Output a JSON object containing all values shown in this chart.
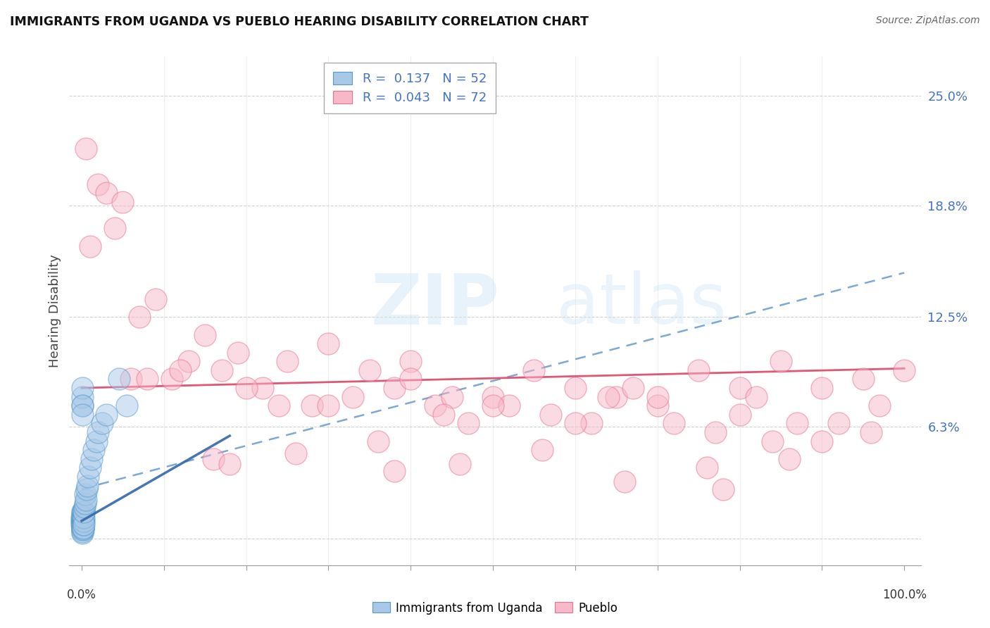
{
  "title": "IMMIGRANTS FROM UGANDA VS PUEBLO HEARING DISABILITY CORRELATION CHART",
  "source": "Source: ZipAtlas.com",
  "ylabel": "Hearing Disability",
  "ytick_vals": [
    0.0,
    0.063,
    0.125,
    0.188,
    0.25
  ],
  "ytick_labels": [
    "",
    "6.3%",
    "12.5%",
    "18.8%",
    "25.0%"
  ],
  "legend_blue_r": "0.137",
  "legend_blue_n": "52",
  "legend_pink_r": "0.043",
  "legend_pink_n": "72",
  "blue_fill": "#a8c8e8",
  "blue_edge": "#5599cc",
  "pink_fill": "#f8b8c8",
  "pink_edge": "#e87090",
  "blue_trend_dash_color": "#6699cc",
  "blue_trend_solid_color": "#3366aa",
  "pink_trend_color": "#dd4466",
  "tick_label_color": "#4472c4",
  "grid_color": "#cccccc",
  "background": "#ffffff",
  "blue_scatter_x": [
    0.02,
    0.03,
    0.04,
    0.05,
    0.05,
    0.06,
    0.07,
    0.07,
    0.08,
    0.08,
    0.09,
    0.1,
    0.1,
    0.11,
    0.12,
    0.12,
    0.13,
    0.14,
    0.15,
    0.15,
    0.16,
    0.17,
    0.18,
    0.19,
    0.2,
    0.2,
    0.22,
    0.24,
    0.26,
    0.28,
    0.3,
    0.35,
    0.4,
    0.45,
    0.5,
    0.6,
    0.7,
    0.8,
    1.0,
    1.2,
    1.5,
    1.8,
    2.0,
    2.5,
    3.0,
    0.08,
    0.09,
    0.1,
    0.11,
    0.13,
    4.5,
    5.5
  ],
  "blue_scatter_y": [
    0.01,
    0.008,
    0.012,
    0.005,
    0.015,
    0.008,
    0.01,
    0.003,
    0.012,
    0.006,
    0.005,
    0.01,
    0.015,
    0.008,
    0.012,
    0.004,
    0.008,
    0.006,
    0.01,
    0.005,
    0.012,
    0.015,
    0.01,
    0.008,
    0.006,
    0.012,
    0.015,
    0.01,
    0.012,
    0.008,
    0.015,
    0.018,
    0.02,
    0.025,
    0.022,
    0.028,
    0.03,
    0.035,
    0.04,
    0.045,
    0.05,
    0.055,
    0.06,
    0.065,
    0.07,
    0.075,
    0.08,
    0.085,
    0.075,
    0.07,
    0.09,
    0.075
  ],
  "pink_scatter_x": [
    0.5,
    1.0,
    2.0,
    3.0,
    4.0,
    5.0,
    7.0,
    9.0,
    11.0,
    13.0,
    15.0,
    17.0,
    19.0,
    22.0,
    25.0,
    28.0,
    30.0,
    33.0,
    35.0,
    38.0,
    40.0,
    43.0,
    45.0,
    47.0,
    50.0,
    52.0,
    55.0,
    57.0,
    60.0,
    62.0,
    65.0,
    67.0,
    70.0,
    72.0,
    75.0,
    77.0,
    80.0,
    82.0,
    85.0,
    87.0,
    90.0,
    92.0,
    95.0,
    97.0,
    100.0,
    6.0,
    12.0,
    20.0,
    30.0,
    40.0,
    50.0,
    60.0,
    70.0,
    80.0,
    90.0,
    8.0,
    24.0,
    44.0,
    64.0,
    84.0,
    16.0,
    36.0,
    56.0,
    76.0,
    96.0,
    26.0,
    46.0,
    66.0,
    86.0,
    18.0,
    38.0,
    78.0
  ],
  "pink_scatter_y": [
    0.22,
    0.165,
    0.2,
    0.195,
    0.175,
    0.19,
    0.125,
    0.135,
    0.09,
    0.1,
    0.115,
    0.095,
    0.105,
    0.085,
    0.1,
    0.075,
    0.11,
    0.08,
    0.095,
    0.085,
    0.1,
    0.075,
    0.08,
    0.065,
    0.08,
    0.075,
    0.095,
    0.07,
    0.085,
    0.065,
    0.08,
    0.085,
    0.075,
    0.065,
    0.095,
    0.06,
    0.085,
    0.08,
    0.1,
    0.065,
    0.085,
    0.065,
    0.09,
    0.075,
    0.095,
    0.09,
    0.095,
    0.085,
    0.075,
    0.09,
    0.075,
    0.065,
    0.08,
    0.07,
    0.055,
    0.09,
    0.075,
    0.07,
    0.08,
    0.055,
    0.045,
    0.055,
    0.05,
    0.04,
    0.06,
    0.048,
    0.042,
    0.032,
    0.045,
    0.042,
    0.038,
    0.028
  ],
  "blue_dash_trend_x": [
    0,
    100
  ],
  "blue_dash_trend_y": [
    0.028,
    0.15
  ],
  "blue_solid_trend_x": [
    0,
    18
  ],
  "blue_solid_trend_y": [
    0.01,
    0.058
  ],
  "pink_trend_x": [
    0,
    100
  ],
  "pink_trend_y": [
    0.085,
    0.096
  ],
  "xlim": [
    -1.5,
    102
  ],
  "ylim": [
    -0.015,
    0.272
  ]
}
